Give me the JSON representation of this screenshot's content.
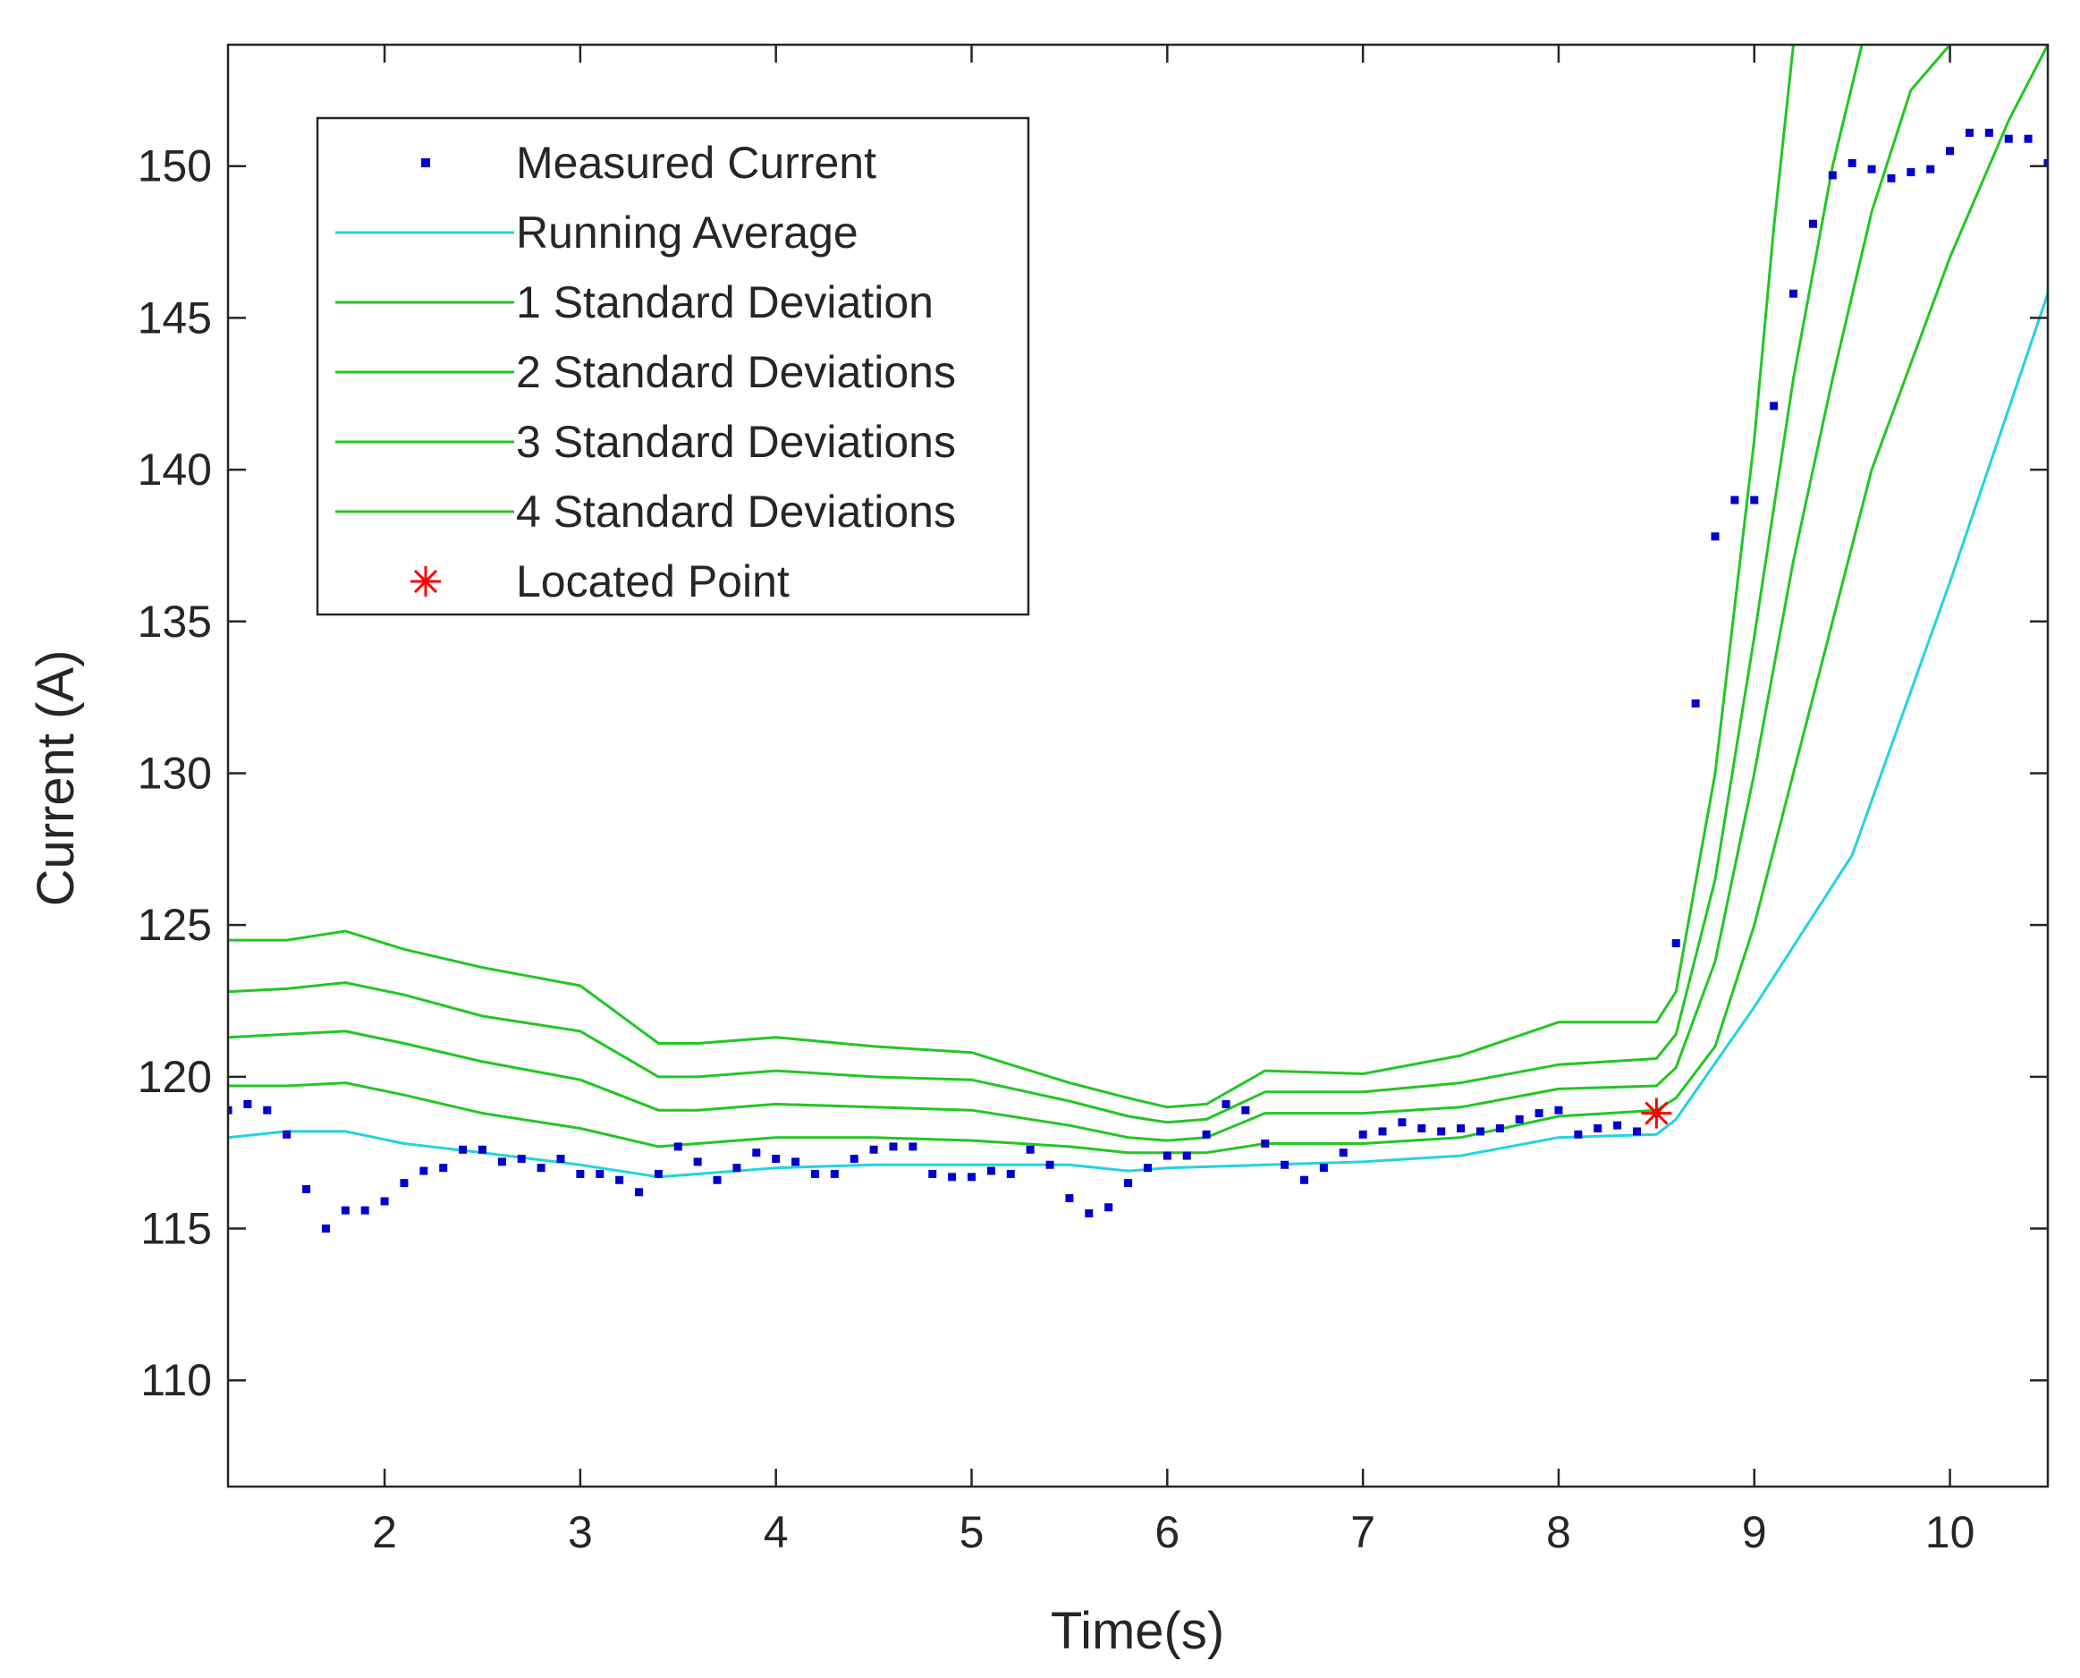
{
  "chart_data": {
    "type": "line",
    "title": "",
    "xlabel": "Time(s)",
    "ylabel": "Current (A)",
    "xlim": [
      1.2,
      10.5
    ],
    "ylim": [
      106.5,
      154
    ],
    "xticks": [
      2,
      3,
      4,
      5,
      6,
      7,
      8,
      9,
      10
    ],
    "yticks": [
      110,
      115,
      120,
      125,
      130,
      135,
      140,
      145,
      150
    ],
    "grid": false,
    "legend_position": "top-left",
    "colors": {
      "measured": "#0000cc",
      "average": "#22d3e0",
      "std": "#22c722",
      "point": "#ff0000",
      "axis": "#262626"
    },
    "series": [
      {
        "name": "Measured Current",
        "style": "dots",
        "x": [
          1.2,
          1.3,
          1.4,
          1.5,
          1.6,
          1.7,
          1.8,
          1.9,
          2.0,
          2.1,
          2.2,
          2.3,
          2.4,
          2.5,
          2.6,
          2.7,
          2.8,
          2.9,
          3.0,
          3.1,
          3.2,
          3.3,
          3.4,
          3.5,
          3.6,
          3.7,
          3.8,
          3.9,
          4.0,
          4.1,
          4.2,
          4.3,
          4.4,
          4.5,
          4.6,
          4.7,
          4.8,
          4.9,
          5.0,
          5.1,
          5.2,
          5.3,
          5.4,
          5.5,
          5.6,
          5.7,
          5.8,
          5.9,
          6.0,
          6.1,
          6.2,
          6.3,
          6.4,
          6.5,
          6.6,
          6.7,
          6.8,
          6.9,
          7.0,
          7.1,
          7.2,
          7.3,
          7.4,
          7.5,
          7.6,
          7.7,
          7.8,
          7.9,
          8.0,
          8.1,
          8.2,
          8.3,
          8.4,
          8.5,
          8.6,
          8.7,
          8.8,
          8.9,
          9.0,
          9.1,
          9.2,
          9.3,
          9.4,
          9.5,
          9.6,
          9.7,
          9.8,
          9.9,
          10.0,
          10.1,
          10.2,
          10.3,
          10.4,
          10.5
        ],
        "y": [
          118.9,
          119.1,
          118.9,
          118.1,
          116.3,
          115.0,
          115.6,
          115.6,
          115.9,
          116.5,
          116.9,
          117.0,
          117.6,
          117.6,
          117.2,
          117.3,
          117.0,
          117.3,
          116.8,
          116.8,
          116.6,
          116.2,
          116.8,
          117.7,
          117.2,
          116.6,
          117.0,
          117.5,
          117.3,
          117.2,
          116.8,
          116.8,
          117.3,
          117.6,
          117.7,
          117.7,
          116.8,
          116.7,
          116.7,
          116.9,
          116.8,
          117.6,
          117.1,
          116.0,
          115.5,
          115.7,
          116.5,
          117.0,
          117.4,
          117.4,
          118.1,
          119.1,
          118.9,
          117.8,
          117.1,
          116.6,
          117.0,
          117.5,
          118.1,
          118.2,
          118.5,
          118.3,
          118.2,
          118.3,
          118.2,
          118.3,
          118.6,
          118.8,
          118.9,
          118.1,
          118.3,
          118.4,
          118.2,
          118.8,
          124.4,
          132.3,
          137.8,
          139.0,
          139.0,
          142.1,
          145.8,
          148.1,
          149.7,
          150.1,
          149.9,
          149.6,
          149.8,
          149.9,
          150.5,
          151.1,
          151.1,
          150.9,
          150.9,
          150.1
        ]
      },
      {
        "name": "Running Average",
        "style": "line",
        "x": [
          1.2,
          1.5,
          1.8,
          2.1,
          2.5,
          3.0,
          3.4,
          3.6,
          4.0,
          4.5,
          5.0,
          5.5,
          5.8,
          6.0,
          6.5,
          7.0,
          7.5,
          8.0,
          8.5,
          8.6,
          9.0,
          9.5,
          10.0,
          10.5
        ],
        "y": [
          118.0,
          118.2,
          118.2,
          117.8,
          117.5,
          117.1,
          116.7,
          116.8,
          117.0,
          117.1,
          117.1,
          117.1,
          116.9,
          117.0,
          117.1,
          117.2,
          117.4,
          118.0,
          118.1,
          118.6,
          122.3,
          127.3,
          136.3,
          145.8
        ]
      },
      {
        "name": "1 Standard Deviation",
        "style": "line",
        "x": [
          1.2,
          1.5,
          1.8,
          2.1,
          2.5,
          3.0,
          3.4,
          3.6,
          4.0,
          4.5,
          5.0,
          5.5,
          5.8,
          6.0,
          6.2,
          6.5,
          7.0,
          7.5,
          8.0,
          8.5,
          8.6,
          8.8,
          9.0,
          9.2,
          9.4,
          9.6,
          10.0,
          10.3,
          10.5
        ],
        "y": [
          119.7,
          119.7,
          119.8,
          119.4,
          118.8,
          118.3,
          117.7,
          117.8,
          118.0,
          118.0,
          117.9,
          117.7,
          117.5,
          117.5,
          117.5,
          117.8,
          117.8,
          118.0,
          118.7,
          118.9,
          119.3,
          121.0,
          125.0,
          130.0,
          135.0,
          140.0,
          147.0,
          151.5,
          154.0
        ]
      },
      {
        "name": "2 Standard Deviations",
        "style": "line",
        "x": [
          1.2,
          1.5,
          1.8,
          2.1,
          2.5,
          3.0,
          3.4,
          3.6,
          4.0,
          4.5,
          5.0,
          5.5,
          5.8,
          6.0,
          6.2,
          6.5,
          7.0,
          7.5,
          8.0,
          8.5,
          8.6,
          8.8,
          9.0,
          9.2,
          9.4,
          9.6,
          9.8,
          10.0
        ],
        "y": [
          121.3,
          121.4,
          121.5,
          121.1,
          120.5,
          119.9,
          118.9,
          118.9,
          119.1,
          119.0,
          118.9,
          118.4,
          118.0,
          117.9,
          118.0,
          118.8,
          118.8,
          119.0,
          119.6,
          119.7,
          120.3,
          123.8,
          130.0,
          137.0,
          143.0,
          148.5,
          152.5,
          154.0
        ]
      },
      {
        "name": "3 Standard Deviations",
        "style": "line",
        "x": [
          1.2,
          1.5,
          1.8,
          2.1,
          2.5,
          3.0,
          3.4,
          3.6,
          4.0,
          4.5,
          5.0,
          5.5,
          5.8,
          6.0,
          6.2,
          6.5,
          7.0,
          7.5,
          8.0,
          8.5,
          8.6,
          8.8,
          9.0,
          9.2,
          9.4,
          9.55
        ],
        "y": [
          122.8,
          122.9,
          123.1,
          122.7,
          122.0,
          121.5,
          120.0,
          120.0,
          120.2,
          120.0,
          119.9,
          119.2,
          118.7,
          118.5,
          118.6,
          119.5,
          119.5,
          119.8,
          120.4,
          120.6,
          121.4,
          126.5,
          134.5,
          143.0,
          150.0,
          154.0
        ]
      },
      {
        "name": "4 Standard Deviations",
        "style": "line",
        "x": [
          1.2,
          1.5,
          1.8,
          2.1,
          2.5,
          3.0,
          3.4,
          3.6,
          4.0,
          4.5,
          5.0,
          5.5,
          5.8,
          6.0,
          6.2,
          6.5,
          7.0,
          7.5,
          8.0,
          8.5,
          8.6,
          8.8,
          9.0,
          9.1,
          9.2
        ],
        "y": [
          124.5,
          124.5,
          124.8,
          124.2,
          123.6,
          123.0,
          121.1,
          121.1,
          121.3,
          121.0,
          120.8,
          119.8,
          119.3,
          119.0,
          119.1,
          120.2,
          120.1,
          120.7,
          121.8,
          121.8,
          122.8,
          130.0,
          141.0,
          148.0,
          154.0
        ]
      }
    ],
    "annotations": [
      {
        "name": "Located Point",
        "marker": "asterisk",
        "x": 8.5,
        "y": 118.8
      }
    ],
    "legend": [
      {
        "label": "Measured Current",
        "style": "dot",
        "color_key": "measured"
      },
      {
        "label": "Running Average",
        "style": "line",
        "color_key": "average"
      },
      {
        "label": "1 Standard Deviation",
        "style": "line",
        "color_key": "std"
      },
      {
        "label": "2 Standard Deviations",
        "style": "line",
        "color_key": "std"
      },
      {
        "label": "3 Standard Deviations",
        "style": "line",
        "color_key": "std"
      },
      {
        "label": "4 Standard Deviations",
        "style": "line",
        "color_key": "std"
      },
      {
        "label": "Located Point",
        "style": "asterisk",
        "color_key": "point"
      }
    ]
  }
}
